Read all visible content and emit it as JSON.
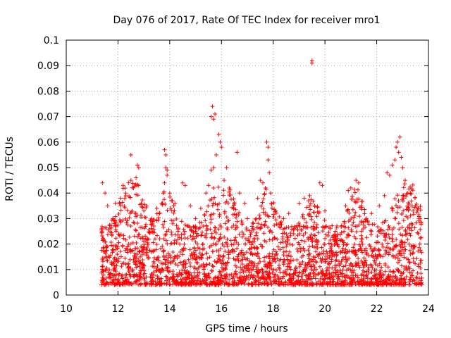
{
  "chart_data": {
    "type": "scatter",
    "title": "Day 076 of 2017, Rate Of TEC Index for receiver mro1",
    "xlabel": "GPS time / hours",
    "ylabel": "ROTI / TECUs",
    "xlim": [
      10,
      24
    ],
    "ylim": [
      0,
      0.1
    ],
    "xticks": [
      "10",
      "12",
      "14",
      "16",
      "18",
      "20",
      "22",
      "24"
    ],
    "yticks": [
      "0",
      "0.01",
      "0.02",
      "0.03",
      "0.04",
      "0.05",
      "0.06",
      "0.07",
      "0.08",
      "0.09",
      "0.1"
    ],
    "grid": true,
    "marker": "+",
    "marker_color": "#ff0000",
    "series": [
      {
        "name": "mro1",
        "points": [
          [
            11.4,
            0.044
          ],
          [
            11.5,
            0.04
          ],
          [
            11.6,
            0.035
          ],
          [
            11.8,
            0.03
          ],
          [
            11.9,
            0.036
          ],
          [
            12.1,
            0.038
          ],
          [
            12.2,
            0.043
          ],
          [
            12.3,
            0.04
          ],
          [
            12.5,
            0.055
          ],
          [
            12.5,
            0.045
          ],
          [
            12.6,
            0.042
          ],
          [
            12.7,
            0.046
          ],
          [
            12.75,
            0.051
          ],
          [
            12.8,
            0.05
          ],
          [
            12.8,
            0.043
          ],
          [
            12.9,
            0.036
          ],
          [
            13.1,
            0.035
          ],
          [
            13.3,
            0.03
          ],
          [
            13.5,
            0.034
          ],
          [
            13.6,
            0.032
          ],
          [
            13.8,
            0.057
          ],
          [
            13.85,
            0.055
          ],
          [
            13.85,
            0.05
          ],
          [
            13.9,
            0.049
          ],
          [
            13.9,
            0.047
          ],
          [
            13.8,
            0.044
          ],
          [
            14.0,
            0.04
          ],
          [
            14.1,
            0.037
          ],
          [
            14.2,
            0.036
          ],
          [
            14.5,
            0.044
          ],
          [
            14.6,
            0.043
          ],
          [
            14.8,
            0.035
          ],
          [
            15.0,
            0.03
          ],
          [
            15.2,
            0.034
          ],
          [
            15.4,
            0.04
          ],
          [
            15.5,
            0.043
          ],
          [
            15.6,
            0.07
          ],
          [
            15.65,
            0.074
          ],
          [
            15.7,
            0.069
          ],
          [
            15.75,
            0.071
          ],
          [
            15.6,
            0.049
          ],
          [
            15.7,
            0.05
          ],
          [
            15.8,
            0.055
          ],
          [
            15.9,
            0.063
          ],
          [
            15.95,
            0.06
          ],
          [
            16.0,
            0.058
          ],
          [
            16.1,
            0.045
          ],
          [
            16.2,
            0.05
          ],
          [
            16.3,
            0.042
          ],
          [
            16.6,
            0.056
          ],
          [
            16.7,
            0.04
          ],
          [
            16.9,
            0.036
          ],
          [
            17.0,
            0.03
          ],
          [
            17.4,
            0.038
          ],
          [
            17.5,
            0.045
          ],
          [
            17.6,
            0.044
          ],
          [
            17.7,
            0.042
          ],
          [
            17.75,
            0.06
          ],
          [
            17.8,
            0.058
          ],
          [
            17.8,
            0.053
          ],
          [
            17.85,
            0.048
          ],
          [
            17.9,
            0.04
          ],
          [
            18.1,
            0.033
          ],
          [
            18.4,
            0.03
          ],
          [
            18.6,
            0.032
          ],
          [
            19.0,
            0.036
          ],
          [
            19.2,
            0.038
          ],
          [
            19.4,
            0.035
          ],
          [
            19.5,
            0.091
          ],
          [
            19.5,
            0.092
          ],
          [
            19.6,
            0.035
          ],
          [
            19.8,
            0.044
          ],
          [
            19.9,
            0.043
          ],
          [
            20.0,
            0.033
          ],
          [
            20.4,
            0.025
          ],
          [
            20.8,
            0.035
          ],
          [
            20.9,
            0.041
          ],
          [
            21.0,
            0.042
          ],
          [
            21.2,
            0.045
          ],
          [
            21.3,
            0.044
          ],
          [
            21.4,
            0.035
          ],
          [
            21.6,
            0.03
          ],
          [
            21.8,
            0.032
          ],
          [
            22.1,
            0.035
          ],
          [
            22.3,
            0.039
          ],
          [
            22.4,
            0.048
          ],
          [
            22.5,
            0.047
          ],
          [
            22.6,
            0.051
          ],
          [
            22.7,
            0.053
          ],
          [
            22.75,
            0.058
          ],
          [
            22.8,
            0.06
          ],
          [
            22.85,
            0.056
          ],
          [
            22.9,
            0.062
          ],
          [
            22.95,
            0.054
          ],
          [
            23.0,
            0.05
          ],
          [
            23.1,
            0.045
          ],
          [
            23.2,
            0.04
          ],
          [
            23.3,
            0.04
          ],
          [
            23.5,
            0.035
          ],
          [
            23.6,
            0.034
          ]
        ]
      }
    ]
  }
}
